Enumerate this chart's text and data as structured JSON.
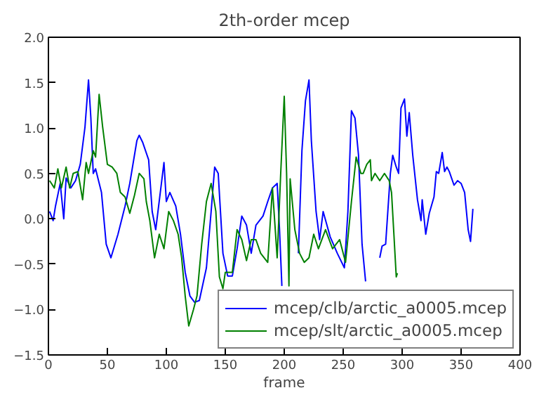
{
  "chart_data": {
    "type": "line",
    "title": "2th-order mcep",
    "xlabel": "frame",
    "xlim": [
      0,
      400
    ],
    "xticks": [
      0,
      50,
      100,
      150,
      200,
      250,
      300,
      350,
      400
    ],
    "ylim": [
      -1.5,
      2.0
    ],
    "yticks": [
      -1.5,
      {
        "value": -1.0,
        "label": "−1.0"
      },
      -0.5,
      {
        "value": 0,
        "label": "0.0"
      },
      0.5,
      {
        "value": 1,
        "label": "1.0"
      },
      1.5,
      {
        "value": 2,
        "label": "2.0"
      }
    ],
    "grid": false,
    "legend": "bottom right",
    "line_style": "solid",
    "series": [
      {
        "name": "mcep/clb/arctic_a0005.mcep",
        "color": "#0000ff",
        "x": [
          1,
          4,
          6,
          10,
          13,
          15,
          19,
          23,
          27,
          31,
          34,
          36,
          38,
          40,
          45,
          49,
          53,
          59,
          65,
          69,
          75,
          77,
          80,
          85,
          88,
          91,
          98,
          100,
          103,
          108,
          112,
          116,
          120,
          124,
          128,
          134,
          138,
          141,
          144,
          148,
          152,
          156,
          160,
          164,
          168,
          172,
          176,
          182,
          186,
          190,
          194,
          196,
          198,
          205,
          212,
          215,
          218,
          221,
          223,
          227,
          230,
          233,
          239,
          245,
          251,
          254,
          257,
          260,
          263,
          266,
          269,
          275,
          281,
          283,
          286,
          290,
          292,
          295,
          297,
          299,
          302,
          304,
          306,
          309,
          313,
          316,
          317,
          320,
          323,
          327,
          329,
          331,
          334,
          336,
          338,
          340,
          344,
          347,
          350,
          353,
          356,
          358,
          360
        ],
        "values": [
          0.08,
          -0.02,
          0.14,
          0.39,
          0.0,
          0.45,
          0.34,
          0.42,
          0.6,
          1.01,
          1.53,
          1.11,
          0.5,
          0.55,
          0.29,
          -0.28,
          -0.43,
          -0.17,
          0.14,
          0.39,
          0.86,
          0.92,
          0.84,
          0.65,
          0.08,
          -0.12,
          0.62,
          0.19,
          0.29,
          0.14,
          -0.17,
          -0.59,
          -0.85,
          -0.92,
          -0.9,
          -0.54,
          0.08,
          0.57,
          0.5,
          -0.38,
          -0.63,
          -0.63,
          -0.33,
          0.03,
          -0.07,
          -0.38,
          -0.07,
          0.03,
          0.19,
          0.34,
          0.39,
          -0.12,
          -0.74,
          null,
          -0.38,
          0.75,
          1.3,
          1.53,
          0.86,
          0.08,
          -0.23,
          0.08,
          -0.2,
          -0.38,
          -0.54,
          0.08,
          1.19,
          1.11,
          0.7,
          -0.28,
          -0.69,
          null,
          -0.43,
          -0.3,
          -0.28,
          0.5,
          0.7,
          0.57,
          0.5,
          1.22,
          1.32,
          0.91,
          1.17,
          0.7,
          0.21,
          -0.02,
          0.21,
          -0.17,
          0.06,
          0.24,
          0.52,
          0.5,
          0.73,
          0.52,
          0.57,
          0.52,
          0.37,
          0.42,
          0.39,
          0.29,
          -0.12,
          -0.25,
          0.11
        ]
      },
      {
        "name": "mcep/slt/arctic_a0005.mcep",
        "color": "#008000",
        "x": [
          1,
          5,
          8,
          11,
          15,
          18,
          21,
          25,
          29,
          32,
          34,
          38,
          40,
          43,
          46,
          50,
          54,
          58,
          61,
          65,
          69,
          73,
          77,
          81,
          83,
          86,
          90,
          94,
          98,
          102,
          106,
          110,
          113,
          116,
          119,
          123,
          126,
          130,
          134,
          138,
          142,
          145,
          148,
          150,
          156,
          160,
          164,
          168,
          172,
          176,
          180,
          186,
          190,
          194,
          197,
          200,
          202,
          204,
          205,
          209,
          213,
          217,
          221,
          225,
          229,
          235,
          241,
          247,
          252,
          257,
          261,
          265,
          267,
          270,
          273,
          274,
          277,
          281,
          285,
          289,
          291,
          293,
          295,
          296
        ],
        "values": [
          0.42,
          0.34,
          0.55,
          0.34,
          0.57,
          0.34,
          0.5,
          0.52,
          0.21,
          0.62,
          0.5,
          0.75,
          0.68,
          1.37,
          1.01,
          0.6,
          0.57,
          0.5,
          0.29,
          0.24,
          0.06,
          0.26,
          0.5,
          0.44,
          0.19,
          -0.02,
          -0.43,
          -0.17,
          -0.33,
          0.08,
          -0.02,
          -0.17,
          -0.43,
          -0.85,
          -1.18,
          -1.0,
          -0.85,
          -0.28,
          0.19,
          0.39,
          0.08,
          -0.64,
          -0.77,
          -0.59,
          -0.59,
          -0.12,
          -0.23,
          -0.46,
          -0.23,
          -0.23,
          -0.38,
          -0.48,
          0.34,
          -0.43,
          0.5,
          1.35,
          0.5,
          -0.74,
          0.44,
          -0.12,
          -0.38,
          -0.48,
          -0.43,
          -0.17,
          -0.33,
          -0.12,
          -0.33,
          -0.23,
          -0.48,
          0.19,
          0.68,
          0.5,
          0.5,
          0.6,
          0.65,
          0.42,
          0.5,
          0.42,
          0.5,
          0.42,
          0.29,
          -0.17,
          -0.64,
          -0.6
        ]
      }
    ]
  }
}
